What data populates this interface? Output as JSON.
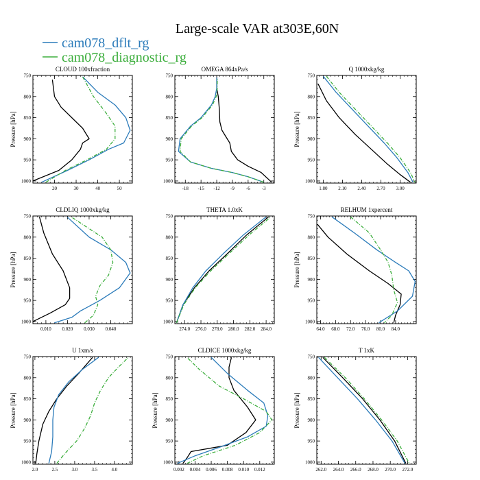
{
  "title": "Large-scale VAR at303E,60N",
  "legend": [
    {
      "name": "cam078_dflt_rg",
      "color": "#2b7bba",
      "dash": "solid"
    },
    {
      "name": "cam078_diagnostic_rg",
      "color": "#3cae3c",
      "dash": "dashdot"
    }
  ],
  "colors": {
    "reference": "#000000",
    "dflt": "#2b7bba",
    "diagnostic": "#3cae3c"
  },
  "chart_data": [
    {
      "type": "line",
      "title": "CLOUD  100xfraction",
      "ylabel": "Pressure [hPa]",
      "xlim": [
        10,
        56
      ],
      "ylim": [
        1005,
        750
      ],
      "xticks": [
        20,
        30,
        40,
        50
      ],
      "xtick_labels": [
        "20",
        "30",
        "40",
        "50"
      ],
      "yticks": [
        750,
        800,
        850,
        900,
        950,
        1000
      ],
      "ytick_labels": [
        "750",
        "800",
        "850",
        "900",
        "950",
        "1000"
      ],
      "series": [
        {
          "key": "reference",
          "x": [
            10,
            22,
            28,
            32,
            33,
            36,
            33,
            28,
            23,
            20,
            19
          ],
          "y": [
            1000,
            975,
            950,
            925,
            910,
            900,
            875,
            850,
            825,
            800,
            760
          ]
        },
        {
          "key": "dflt",
          "x": [
            14,
            26,
            36,
            45,
            52,
            55,
            53,
            48,
            40,
            33
          ],
          "y": [
            1003,
            975,
            950,
            925,
            910,
            880,
            850,
            820,
            790,
            753
          ]
        },
        {
          "key": "diagnostic",
          "x": [
            16,
            25,
            35,
            44,
            48,
            48,
            44,
            38,
            33
          ],
          "y": [
            1003,
            975,
            950,
            925,
            900,
            870,
            840,
            800,
            753
          ]
        }
      ]
    },
    {
      "type": "line",
      "title": "OMEGA  864xPa/s",
      "ylabel": "",
      "xlim": [
        -20,
        -1
      ],
      "ylim": [
        1005,
        750
      ],
      "xticks": [
        -18,
        -15,
        -12,
        -9,
        -6,
        -3
      ],
      "xtick_labels": [
        "-18",
        "-15",
        "-12",
        "-9",
        "-6",
        "-3"
      ],
      "yticks": [
        750,
        800,
        850,
        900,
        950,
        1000
      ],
      "ytick_labels": [
        "750",
        "800",
        "850",
        "900",
        "950",
        "1000"
      ],
      "series": [
        {
          "key": "reference",
          "x": [
            -1.5,
            -3.5,
            -6,
            -8,
            -9.2,
            -9.5,
            -10,
            -11,
            -11.4,
            -11.5,
            -11.7,
            -12,
            -12
          ],
          "y": [
            1003,
            980,
            965,
            950,
            930,
            910,
            900,
            880,
            860,
            830,
            800,
            780,
            755
          ]
        },
        {
          "key": "dflt",
          "x": [
            -3,
            -6,
            -9,
            -13,
            -17,
            -19.3,
            -19,
            -17,
            -15,
            -13,
            -12.3,
            -12,
            -12
          ],
          "y": [
            1003,
            990,
            980,
            970,
            955,
            930,
            900,
            870,
            850,
            820,
            800,
            780,
            755
          ]
        },
        {
          "key": "diagnostic",
          "x": [
            -3,
            -6,
            -9,
            -13,
            -17,
            -19,
            -18.8,
            -16.8,
            -14.8,
            -12.8,
            -12.1,
            -11.9,
            -11.9
          ],
          "y": [
            1003,
            990,
            980,
            970,
            955,
            930,
            900,
            870,
            850,
            820,
            800,
            780,
            755
          ]
        }
      ]
    },
    {
      "type": "line",
      "title": "Q  1000xkg/kg",
      "ylabel": "Pressure [hPa]",
      "xlim": [
        1.7,
        3.25
      ],
      "ylim": [
        1005,
        750
      ],
      "xticks": [
        1.8,
        2.1,
        2.4,
        2.7,
        3.0
      ],
      "xtick_labels": [
        "1.80",
        "2.10",
        "2.40",
        "2.70",
        "3.00"
      ],
      "yticks": [
        750,
        800,
        850,
        900,
        950,
        1000
      ],
      "ytick_labels": [
        "750",
        "800",
        "850",
        "900",
        "950",
        "1000"
      ],
      "series": [
        {
          "key": "reference",
          "x": [
            1.72,
            1.85,
            2.05,
            2.3,
            2.55,
            2.8,
            3.0,
            3.16
          ],
          "y": [
            770,
            810,
            850,
            890,
            925,
            960,
            985,
            1003
          ]
        },
        {
          "key": "dflt",
          "x": [
            1.8,
            2.0,
            2.25,
            2.5,
            2.75,
            2.95,
            3.12,
            3.2
          ],
          "y": [
            752,
            790,
            830,
            870,
            910,
            945,
            980,
            1003
          ]
        },
        {
          "key": "diagnostic",
          "x": [
            1.85,
            2.05,
            2.3,
            2.55,
            2.8,
            3.0,
            3.16,
            3.23
          ],
          "y": [
            752,
            790,
            830,
            870,
            910,
            945,
            980,
            1003
          ]
        }
      ]
    },
    {
      "type": "line",
      "title": "CLDLIQ  1000xkg/kg",
      "ylabel": "Pressure [hPa]",
      "xlim": [
        0.004,
        0.05
      ],
      "ylim": [
        1005,
        750
      ],
      "xticks": [
        0.01,
        0.02,
        0.03,
        0.04
      ],
      "xtick_labels": [
        "0.010",
        "0.020",
        "0.030",
        "0.040"
      ],
      "yticks": [
        750,
        800,
        850,
        900,
        950,
        1000
      ],
      "ytick_labels": [
        "750",
        "800",
        "850",
        "900",
        "950",
        "1000"
      ],
      "series": [
        {
          "key": "reference",
          "x": [
            0.004,
            0.012,
            0.019,
            0.021,
            0.021,
            0.018,
            0.013,
            0.009,
            0.007
          ],
          "y": [
            1000,
            980,
            960,
            945,
            920,
            880,
            840,
            790,
            752
          ]
        },
        {
          "key": "dflt",
          "x": [
            0.014,
            0.022,
            0.026,
            0.035,
            0.044,
            0.049,
            0.047,
            0.04,
            0.03,
            0.02
          ],
          "y": [
            1003,
            990,
            975,
            950,
            920,
            885,
            860,
            830,
            800,
            753
          ]
        },
        {
          "key": "diagnostic",
          "x": [
            0.028,
            0.032,
            0.034,
            0.033,
            0.035,
            0.039,
            0.041,
            0.04,
            0.036,
            0.03,
            0.022
          ],
          "y": [
            1003,
            985,
            960,
            940,
            915,
            890,
            860,
            830,
            800,
            780,
            753
          ]
        }
      ]
    },
    {
      "type": "line",
      "title": "THETA  1.0xK",
      "ylabel": "",
      "xlim": [
        272.8,
        285
      ],
      "ylim": [
        1005,
        750
      ],
      "xticks": [
        274,
        276,
        278,
        280,
        282,
        284
      ],
      "xtick_labels": [
        "274.0",
        "276.0",
        "278.0",
        "280.0",
        "282.0",
        "284.0"
      ],
      "yticks": [
        750,
        800,
        850,
        900,
        950,
        1000
      ],
      "ytick_labels": [
        "750",
        "800",
        "850",
        "900",
        "950",
        "1000"
      ],
      "series": [
        {
          "key": "reference",
          "x": [
            273.0,
            273.8,
            275.2,
            277.0,
            279.2,
            281.6,
            284.3
          ],
          "y": [
            1003,
            960,
            920,
            880,
            840,
            795,
            752
          ]
        },
        {
          "key": "dflt",
          "x": [
            273.0,
            273.8,
            275.0,
            276.6,
            278.7,
            281.2,
            284.0
          ],
          "y": [
            1003,
            960,
            920,
            880,
            840,
            795,
            752
          ]
        },
        {
          "key": "diagnostic",
          "x": [
            273.0,
            273.9,
            275.3,
            277.2,
            279.4,
            281.9,
            284.6
          ],
          "y": [
            1003,
            960,
            920,
            880,
            840,
            795,
            752
          ]
        }
      ]
    },
    {
      "type": "line",
      "title": "RELHUM  1xpercent",
      "ylabel": "Pressure [hPa]",
      "xlim": [
        63,
        89.5
      ],
      "ylim": [
        1005,
        750
      ],
      "xticks": [
        64,
        68,
        72,
        76,
        80,
        84
      ],
      "xtick_labels": [
        "64.0",
        "68.0",
        "72.0",
        "76.0",
        "80.0",
        "84.0"
      ],
      "yticks": [
        750,
        800,
        850,
        900,
        950,
        1000
      ],
      "ytick_labels": [
        "750",
        "800",
        "850",
        "900",
        "950",
        "1000"
      ],
      "series": [
        {
          "key": "reference",
          "x": [
            63.2,
            66,
            71,
            77,
            82,
            85.5,
            85.2,
            84,
            83.5
          ],
          "y": [
            770,
            800,
            840,
            880,
            910,
            935,
            960,
            985,
            1003
          ]
        },
        {
          "key": "dflt",
          "x": [
            67,
            73,
            79,
            84,
            87.5,
            89.2,
            88.5,
            84.5,
            79.5
          ],
          "y": [
            752,
            790,
            830,
            860,
            880,
            905,
            940,
            975,
            1003
          ]
        },
        {
          "key": "diagnostic",
          "x": [
            72,
            77,
            80,
            82,
            83,
            83.5,
            84.5,
            83,
            81
          ],
          "y": [
            752,
            790,
            830,
            860,
            890,
            925,
            955,
            985,
            1003
          ]
        }
      ]
    },
    {
      "type": "line",
      "title": "U  1xm/s",
      "ylabel": "Pressure [hPa]",
      "xlim": [
        1.95,
        4.45
      ],
      "ylim": [
        1005,
        750
      ],
      "xticks": [
        2.0,
        2.5,
        3.0,
        3.5,
        4.0
      ],
      "xtick_labels": [
        "2.0",
        "2.5",
        "3.0",
        "3.5",
        "4.0"
      ],
      "yticks": [
        750,
        800,
        850,
        900,
        950,
        1000
      ],
      "ytick_labels": [
        "750",
        "800",
        "850",
        "900",
        "950",
        "1000"
      ],
      "series": [
        {
          "key": "reference",
          "x": [
            2.02,
            2.05,
            2.1,
            2.2,
            2.35,
            2.55,
            2.8,
            3.1,
            3.45
          ],
          "y": [
            1003,
            980,
            950,
            910,
            880,
            850,
            820,
            790,
            752
          ]
        },
        {
          "key": "dflt",
          "x": [
            2.35,
            2.42,
            2.45,
            2.45,
            2.48,
            2.6,
            2.85,
            3.2,
            3.6
          ],
          "y": [
            1003,
            975,
            940,
            900,
            870,
            840,
            810,
            780,
            752
          ]
        },
        {
          "key": "diagnostic",
          "x": [
            2.55,
            2.75,
            3.05,
            3.25,
            3.4,
            3.5,
            3.65,
            3.85,
            4.1,
            4.35
          ],
          "y": [
            1003,
            980,
            950,
            920,
            890,
            860,
            830,
            800,
            775,
            752
          ]
        }
      ]
    },
    {
      "type": "line",
      "title": "CLDICE  1000xkg/kg",
      "ylabel": "Pressure [hPa]",
      "xlim": [
        0.0015,
        0.0138
      ],
      "ylim": [
        1005,
        750
      ],
      "xticks": [
        0.002,
        0.004,
        0.006,
        0.008,
        0.01,
        0.012
      ],
      "xtick_labels": [
        "0.002",
        "0.004",
        "0.006",
        "0.008",
        "0.010",
        "0.012"
      ],
      "yticks": [
        750,
        800,
        850,
        900,
        950,
        1000
      ],
      "ytick_labels": [
        "750",
        "800",
        "850",
        "900",
        "950",
        "1000"
      ],
      "series": [
        {
          "key": "reference",
          "x": [
            0.0025,
            0.003,
            0.0035,
            0.008,
            0.0103,
            0.0115,
            0.0105,
            0.0088,
            0.0082,
            0.0082,
            0.0085
          ],
          "y": [
            1003,
            990,
            975,
            960,
            930,
            900,
            870,
            830,
            800,
            775,
            752
          ]
        },
        {
          "key": "dflt",
          "x": [
            0.0018,
            0.004,
            0.007,
            0.0105,
            0.0128,
            0.013,
            0.0125,
            0.0105,
            0.008,
            0.006
          ],
          "y": [
            1003,
            985,
            965,
            940,
            915,
            890,
            860,
            830,
            790,
            752
          ]
        },
        {
          "key": "diagnostic",
          "x": [
            0.003,
            0.005,
            0.009,
            0.012,
            0.0135,
            0.0128,
            0.01,
            0.007,
            0.0045,
            0.003
          ],
          "y": [
            1003,
            985,
            960,
            930,
            900,
            880,
            850,
            820,
            780,
            752
          ]
        }
      ]
    },
    {
      "type": "line",
      "title": "T  1xK",
      "ylabel": "Pressure [hPa]",
      "xlim": [
        261.5,
        273
      ],
      "ylim": [
        1005,
        750
      ],
      "xticks": [
        262,
        264,
        266,
        268,
        270,
        272
      ],
      "xtick_labels": [
        "262.0",
        "264.0",
        "266.0",
        "268.0",
        "270.0",
        "272.0"
      ],
      "yticks": [
        750,
        800,
        850,
        900,
        950,
        1000
      ],
      "ytick_labels": [
        "750",
        "800",
        "850",
        "900",
        "950",
        "1000"
      ],
      "series": [
        {
          "key": "reference",
          "x": [
            262.2,
            264.5,
            266.8,
            268.8,
            270.5,
            271.8
          ],
          "y": [
            752,
            800,
            850,
            900,
            950,
            1003
          ]
        },
        {
          "key": "dflt",
          "x": [
            261.7,
            263.9,
            266.2,
            268.3,
            270.2,
            271.7
          ],
          "y": [
            752,
            800,
            850,
            900,
            950,
            1003
          ]
        },
        {
          "key": "diagnostic",
          "x": [
            262.4,
            264.8,
            267.0,
            269.0,
            270.8,
            272.2
          ],
          "y": [
            752,
            800,
            850,
            900,
            950,
            1003
          ]
        }
      ]
    }
  ]
}
